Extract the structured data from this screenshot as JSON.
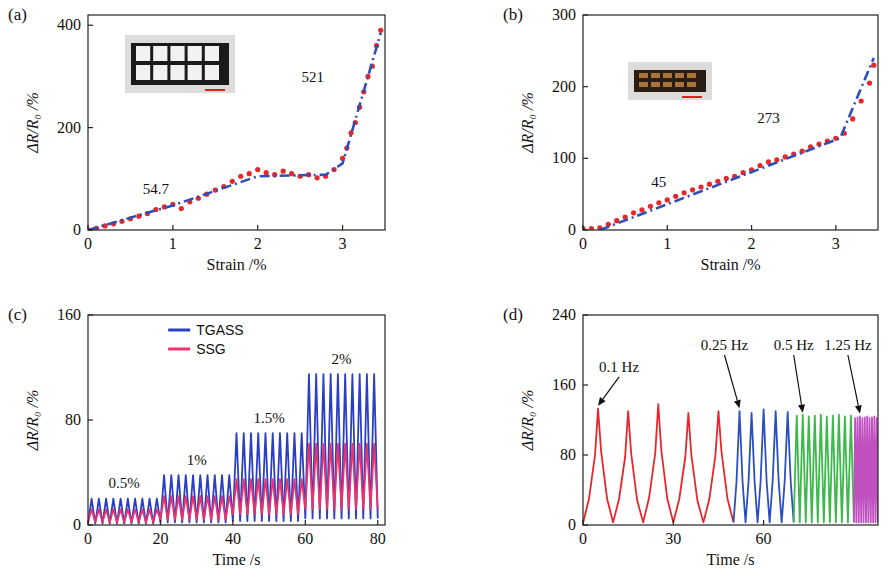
{
  "chart_data": [
    {
      "type": "scatter",
      "label": "(a)",
      "x_label": "Strain /%",
      "y_label": "ΔR/R₀ /%",
      "xlim": [
        0,
        3.5
      ],
      "ylim": [
        0,
        420
      ],
      "xticks": [
        0,
        1,
        2,
        3
      ],
      "yticks": [
        0,
        200,
        400
      ],
      "grid": false,
      "series": [
        {
          "type": "scatter",
          "color": "#e8262b",
          "marker": "circle",
          "x": [
            0,
            0.1,
            0.2,
            0.3,
            0.4,
            0.5,
            0.6,
            0.7,
            0.8,
            0.9,
            1.0,
            1.1,
            1.2,
            1.3,
            1.4,
            1.5,
            1.6,
            1.7,
            1.8,
            1.9,
            2.0,
            2.1,
            2.2,
            2.3,
            2.4,
            2.5,
            2.6,
            2.7,
            2.8,
            2.9,
            3.0,
            3.05,
            3.1,
            3.15,
            3.2,
            3.25,
            3.3,
            3.35,
            3.4,
            3.45
          ],
          "values": [
            0,
            3,
            8,
            12,
            17,
            22,
            27,
            32,
            40,
            45,
            50,
            42,
            55,
            62,
            70,
            78,
            85,
            95,
            105,
            110,
            118,
            112,
            108,
            115,
            110,
            105,
            108,
            102,
            105,
            118,
            140,
            160,
            190,
            210,
            240,
            270,
            300,
            320,
            360,
            390
          ]
        },
        {
          "type": "line",
          "color": "#2e4fb8",
          "line_style": "dash-dot",
          "x": [
            0,
            1,
            2,
            2.8,
            3.0,
            3.45
          ],
          "values": [
            0,
            48,
            105,
            108,
            130,
            385
          ]
        }
      ],
      "annotations": [
        {
          "text": "54.7",
          "x": 0.8,
          "y": 70
        },
        {
          "text": "521",
          "x": 2.65,
          "y": 290
        }
      ]
    },
    {
      "type": "scatter",
      "label": "(b)",
      "x_label": "Strain /%",
      "y_label": "ΔR/R₀ /%",
      "xlim": [
        0,
        3.5
      ],
      "ylim": [
        0,
        300
      ],
      "xticks": [
        0,
        1,
        2,
        3
      ],
      "yticks": [
        0,
        100,
        200,
        300
      ],
      "grid": false,
      "series": [
        {
          "type": "scatter",
          "color": "#e8262b",
          "marker": "circle",
          "x": [
            0,
            0.1,
            0.2,
            0.3,
            0.4,
            0.5,
            0.6,
            0.7,
            0.8,
            0.9,
            1.0,
            1.1,
            1.2,
            1.3,
            1.4,
            1.5,
            1.6,
            1.7,
            1.8,
            1.9,
            2.0,
            2.1,
            2.2,
            2.3,
            2.4,
            2.5,
            2.6,
            2.7,
            2.8,
            2.9,
            3.0,
            3.1,
            3.2,
            3.3,
            3.4,
            3.45
          ],
          "values": [
            2,
            2,
            3,
            8,
            13,
            18,
            24,
            28,
            33,
            38,
            42,
            47,
            52,
            56,
            60,
            64,
            68,
            72,
            75,
            80,
            84,
            90,
            95,
            98,
            102,
            106,
            110,
            116,
            120,
            124,
            128,
            135,
            155,
            180,
            205,
            230
          ]
        },
        {
          "type": "line",
          "color": "#2e4fb8",
          "line_style": "dash-dot",
          "x": [
            0.2,
            3.05,
            3.45
          ],
          "values": [
            0,
            128,
            240
          ]
        }
      ],
      "annotations": [
        {
          "text": "45",
          "x": 0.9,
          "y": 60
        },
        {
          "text": "273",
          "x": 2.2,
          "y": 150
        }
      ]
    },
    {
      "type": "line",
      "label": "(c)",
      "x_label": "Time /s",
      "y_label": "ΔR/R₀ /%",
      "xlim": [
        0,
        82
      ],
      "ylim": [
        0,
        160
      ],
      "xticks": [
        0,
        20,
        40,
        60,
        80
      ],
      "yticks": [
        0,
        80,
        160
      ],
      "grid": false,
      "legend": "top",
      "x": [
        0,
        1,
        2,
        3,
        4,
        5,
        6,
        7,
        8,
        9,
        10,
        11,
        12,
        13,
        14,
        15,
        16,
        17,
        18,
        19,
        20,
        21,
        22,
        23,
        24,
        25,
        26,
        27,
        28,
        29,
        30,
        31,
        32,
        33,
        34,
        35,
        36,
        37,
        38,
        39,
        40,
        41,
        42,
        43,
        44,
        45,
        46,
        47,
        48,
        49,
        50,
        51,
        52,
        53,
        54,
        55,
        56,
        57,
        58,
        59,
        60,
        61,
        62,
        63,
        64,
        65,
        66,
        67,
        68,
        69,
        70,
        71,
        72,
        73,
        74,
        75,
        76,
        77,
        78,
        79,
        80
      ],
      "series": [
        {
          "name": "TGASS",
          "color": "#2b3fc4",
          "values": [
            1,
            20,
            1,
            20,
            1,
            20,
            1,
            20,
            1,
            20,
            1,
            20,
            1,
            20,
            1,
            20,
            1,
            20,
            1,
            20,
            2,
            38,
            2,
            38,
            2,
            38,
            2,
            38,
            2,
            38,
            2,
            38,
            2,
            38,
            2,
            38,
            2,
            38,
            2,
            38,
            3,
            70,
            3,
            70,
            3,
            70,
            3,
            70,
            3,
            70,
            3,
            70,
            3,
            70,
            3,
            70,
            3,
            70,
            3,
            70,
            5,
            115,
            5,
            115,
            5,
            115,
            5,
            115,
            5,
            115,
            5,
            115,
            5,
            115,
            5,
            115,
            5,
            115,
            5,
            115,
            5
          ]
        },
        {
          "name": "SSG",
          "color": "#e8336f",
          "values": [
            2,
            12,
            2,
            12,
            2,
            12,
            2,
            12,
            2,
            12,
            2,
            12,
            2,
            12,
            2,
            12,
            2,
            12,
            2,
            12,
            4,
            22,
            4,
            22,
            4,
            22,
            4,
            22,
            4,
            22,
            4,
            22,
            4,
            22,
            4,
            22,
            4,
            22,
            4,
            22,
            8,
            35,
            8,
            35,
            8,
            35,
            8,
            35,
            8,
            35,
            8,
            35,
            8,
            35,
            8,
            35,
            8,
            35,
            8,
            35,
            12,
            62,
            12,
            62,
            12,
            62,
            12,
            62,
            12,
            62,
            12,
            62,
            12,
            62,
            12,
            62,
            12,
            62,
            12,
            62,
            12
          ]
        }
      ],
      "annotations": [
        {
          "text": "0.5%",
          "x": 10,
          "y": 28
        },
        {
          "text": "1%",
          "x": 30,
          "y": 46
        },
        {
          "text": "1.5%",
          "x": 50,
          "y": 78
        },
        {
          "text": "2%",
          "x": 70,
          "y": 123
        }
      ]
    },
    {
      "type": "line",
      "label": "(d)",
      "x_label": "Time /s",
      "y_label": "ΔR/R₀ /%",
      "xlim": [
        0,
        98
      ],
      "ylim": [
        0,
        240
      ],
      "xticks": [
        0,
        30,
        60
      ],
      "yticks": [
        0,
        80,
        160,
        240
      ],
      "grid": false,
      "series": [
        {
          "color": "#e8262b",
          "x": [
            0,
            2,
            4,
            5,
            6,
            8,
            10,
            12,
            14,
            15,
            16,
            18,
            20,
            22,
            24,
            25,
            26,
            28,
            30,
            32,
            34,
            35,
            36,
            38,
            40,
            42,
            44,
            45,
            46,
            48,
            50
          ],
          "values": [
            2,
            30,
            80,
            133,
            85,
            30,
            3,
            30,
            78,
            130,
            82,
            28,
            3,
            32,
            82,
            138,
            86,
            30,
            3,
            30,
            78,
            128,
            80,
            28,
            3,
            30,
            80,
            130,
            84,
            30,
            3
          ]
        },
        {
          "color": "#2b4fc0",
          "x": [
            50,
            51,
            52,
            53,
            54,
            55,
            56,
            57,
            58,
            59,
            60,
            61,
            62,
            63,
            64,
            65,
            66,
            67,
            68,
            69,
            70
          ],
          "values": [
            3,
            50,
            130,
            50,
            3,
            50,
            128,
            50,
            3,
            50,
            132,
            50,
            3,
            50,
            130,
            50,
            3,
            50,
            129,
            50,
            3
          ]
        },
        {
          "color": "#3db84a",
          "x": [
            70,
            71,
            72,
            73,
            74,
            75,
            76,
            77,
            78,
            79,
            80,
            81,
            82,
            83,
            84,
            85,
            86,
            87,
            88,
            89,
            90
          ],
          "values": [
            3,
            125,
            3,
            126,
            3,
            124,
            3,
            125,
            3,
            126,
            3,
            124,
            3,
            125,
            3,
            126,
            3,
            124,
            3,
            125,
            3
          ]
        },
        {
          "color": "#c04fc0",
          "x": [
            90,
            90.4,
            90.8,
            91.2,
            91.6,
            92,
            92.4,
            92.8,
            93.2,
            93.6,
            94,
            94.4,
            94.8,
            95.2,
            95.6,
            96,
            96.4,
            96.8,
            97.2,
            97.6,
            98
          ],
          "values": [
            3,
            122,
            3,
            123,
            3,
            124,
            3,
            122,
            3,
            123,
            3,
            124,
            3,
            122,
            3,
            123,
            3,
            124,
            3,
            122,
            3
          ]
        }
      ],
      "annotations": [
        {
          "text": "0.1 Hz",
          "x": 12,
          "y": 175,
          "arrow_x": 5,
          "arrow_y": 133
        },
        {
          "text": "0.25 Hz",
          "x": 47,
          "y": 200,
          "arrow_x": 52,
          "arrow_y": 130
        },
        {
          "text": "0.5 Hz",
          "x": 70,
          "y": 200,
          "arrow_x": 73,
          "arrow_y": 125
        },
        {
          "text": "1.25 Hz",
          "x": 88,
          "y": 200,
          "arrow_x": 92,
          "arrow_y": 124
        }
      ]
    }
  ]
}
